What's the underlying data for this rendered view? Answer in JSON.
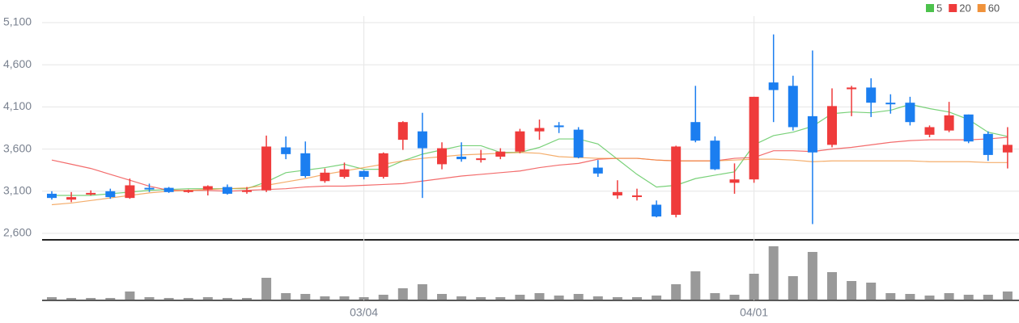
{
  "chart_data": {
    "type": "candlestick",
    "categories": [
      null,
      null,
      null,
      null,
      null,
      null,
      null,
      null,
      null,
      null,
      null,
      null,
      null,
      null,
      null,
      null,
      "03/04",
      null,
      null,
      null,
      null,
      null,
      null,
      null,
      null,
      null,
      null,
      null,
      null,
      null,
      null,
      null,
      null,
      null,
      null,
      null,
      "04/01",
      null,
      null,
      null,
      null,
      null,
      null,
      null,
      null,
      null,
      null,
      null,
      null,
      null
    ],
    "open": [
      3070,
      3000,
      3070,
      3100,
      3020,
      3140,
      3140,
      3090,
      3120,
      3150,
      3100,
      3110,
      3620,
      3550,
      3220,
      3270,
      3340,
      3270,
      3710,
      3810,
      3420,
      3510,
      3470,
      3510,
      3570,
      3810,
      3880,
      3830,
      3380,
      3050,
      3040,
      2940,
      2820,
      3920,
      3700,
      3200,
      3240,
      4390,
      4350,
      3990,
      3650,
      4310,
      4330,
      4150,
      4150,
      3770,
      3820,
      4010,
      3780,
      3560
    ],
    "high": [
      3100,
      3090,
      3110,
      3130,
      3250,
      3190,
      3150,
      3120,
      3170,
      3180,
      3150,
      3760,
      3750,
      3690,
      3370,
      3440,
      3350,
      3560,
      3930,
      4030,
      3680,
      3680,
      3590,
      3610,
      3840,
      3950,
      3920,
      3860,
      3470,
      3230,
      3130,
      2990,
      3640,
      4350,
      3750,
      3430,
      4220,
      4960,
      4470,
      4770,
      4320,
      4350,
      4440,
      4250,
      4220,
      3880,
      4160,
      4010,
      3810,
      3860
    ],
    "low": [
      3000,
      2970,
      3050,
      3010,
      3010,
      3090,
      3080,
      3080,
      3050,
      3060,
      3070,
      3090,
      3480,
      3260,
      3200,
      3250,
      3240,
      3250,
      3590,
      3020,
      3360,
      3450,
      3440,
      3480,
      3550,
      3710,
      3790,
      3490,
      3270,
      3010,
      2990,
      2790,
      2790,
      3680,
      3350,
      3070,
      3200,
      3920,
      3820,
      2710,
      3620,
      3990,
      3980,
      4020,
      3880,
      3740,
      3800,
      3670,
      3460,
      3370
    ],
    "close": [
      3020,
      3030,
      3080,
      3030,
      3170,
      3130,
      3090,
      3110,
      3160,
      3070,
      3110,
      3630,
      3540,
      3280,
      3320,
      3360,
      3270,
      3550,
      3920,
      3610,
      3610,
      3480,
      3490,
      3570,
      3810,
      3850,
      3860,
      3500,
      3310,
      3090,
      3050,
      2800,
      3630,
      3700,
      3360,
      3240,
      4220,
      4300,
      3860,
      3560,
      4110,
      4330,
      4150,
      4140,
      3920,
      3860,
      4000,
      3690,
      3530,
      3650
    ],
    "up_color": "#ef3b3b",
    "down_color": "#1b7ef0",
    "series": [
      {
        "name": "5",
        "color": "#4cc24c",
        "values": [
          3050,
          3050,
          3050,
          3070,
          3090,
          3110,
          3120,
          3130,
          3130,
          3130,
          3130,
          3210,
          3320,
          3350,
          3380,
          3420,
          3360,
          3360,
          3460,
          3540,
          3590,
          3640,
          3640,
          3560,
          3560,
          3620,
          3720,
          3720,
          3660,
          3480,
          3300,
          3150,
          3170,
          3250,
          3290,
          3330,
          3650,
          3760,
          3800,
          3870,
          4020,
          4040,
          4030,
          4060,
          4130,
          4080,
          4040,
          3950,
          3800,
          3750
        ]
      },
      {
        "name": "20",
        "color": "#ef3b3b",
        "values": [
          3470,
          3420,
          3370,
          3300,
          3230,
          3160,
          3110,
          3110,
          3110,
          3100,
          3110,
          3120,
          3130,
          3150,
          3160,
          3160,
          3170,
          3180,
          3190,
          3220,
          3250,
          3280,
          3300,
          3320,
          3340,
          3380,
          3410,
          3430,
          3480,
          3490,
          3490,
          3470,
          3460,
          3460,
          3460,
          3490,
          3500,
          3580,
          3580,
          3570,
          3600,
          3620,
          3650,
          3680,
          3700,
          3710,
          3710,
          3710,
          3720,
          3740
        ]
      },
      {
        "name": "60",
        "color": "#f0923a",
        "values": [
          2940,
          2960,
          2990,
          3020,
          3050,
          3080,
          3100,
          3110,
          3120,
          3130,
          3140,
          3170,
          3210,
          3250,
          3300,
          3340,
          3380,
          3420,
          3460,
          3490,
          3510,
          3530,
          3540,
          3550,
          3560,
          3550,
          3510,
          3500,
          3490,
          3490,
          3490,
          3470,
          3460,
          3460,
          3460,
          3470,
          3480,
          3480,
          3470,
          3450,
          3460,
          3460,
          3460,
          3460,
          3460,
          3450,
          3450,
          3450,
          3440,
          3440
        ]
      }
    ],
    "volume": [
      3,
      2,
      2,
      2,
      10,
      3,
      2,
      2,
      3,
      2,
      2,
      27,
      8,
      7,
      4,
      4,
      3,
      6,
      14,
      19,
      7,
      4,
      3,
      3,
      6,
      8,
      5,
      7,
      4,
      3,
      3,
      5,
      19,
      35,
      8,
      6,
      32,
      66,
      29,
      59,
      34,
      23,
      21,
      8,
      7,
      5,
      8,
      6,
      6,
      10
    ],
    "volume_color": "#999999",
    "ylim": [
      2600,
      5100
    ],
    "yticks": [
      {
        "value": 5100,
        "label": "5,100"
      },
      {
        "value": 4600,
        "label": "4,600"
      },
      {
        "value": 4100,
        "label": "4,100"
      },
      {
        "value": 3600,
        "label": "3,600"
      },
      {
        "value": 3100,
        "label": "3,100"
      },
      {
        "value": 2600,
        "label": "2,600"
      }
    ],
    "grid": true
  }
}
